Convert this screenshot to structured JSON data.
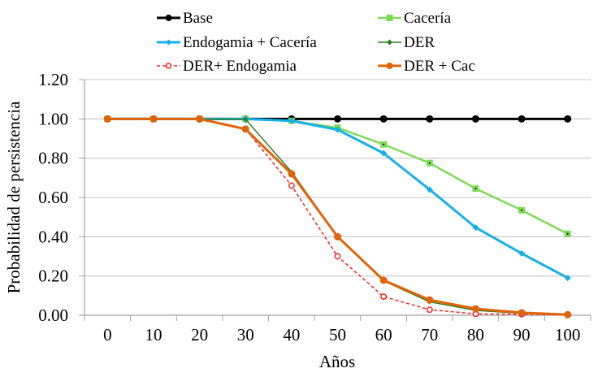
{
  "chart_data": {
    "type": "line",
    "title": "",
    "xlabel": "Años",
    "ylabel": "Probabilidad de persistencia",
    "categories": [
      "0",
      "10",
      "20",
      "30",
      "40",
      "50",
      "60",
      "70",
      "80",
      "90",
      "100"
    ],
    "ylim": [
      0,
      1.2
    ],
    "yticks": [
      "0.00",
      "0.20",
      "0.40",
      "0.60",
      "0.80",
      "1.00",
      "1.20"
    ],
    "grid": true,
    "legend_position": "top",
    "series": [
      {
        "name": "Base",
        "color": "#000000",
        "dashed": false,
        "marker": "circle",
        "values": [
          1.0,
          1.0,
          1.0,
          1.0,
          1.0,
          1.0,
          1.0,
          1.0,
          1.0,
          1.0,
          1.0
        ]
      },
      {
        "name": "Cacería",
        "color": "#7ED957",
        "dashed": false,
        "marker": "square",
        "values": [
          1.0,
          1.0,
          1.0,
          1.0,
          0.99,
          0.955,
          0.87,
          0.775,
          0.645,
          0.535,
          0.415
        ]
      },
      {
        "name": "Endogamia + Cacería",
        "color": "#17B0E8",
        "dashed": false,
        "marker": "diamond",
        "values": [
          1.0,
          1.0,
          1.0,
          1.0,
          0.99,
          0.945,
          0.825,
          0.64,
          0.447,
          0.315,
          0.19
        ]
      },
      {
        "name": "DER",
        "color": "#2E7D23",
        "dashed": false,
        "marker": "diamond",
        "values": [
          1.0,
          1.0,
          1.0,
          0.998,
          0.73,
          0.4,
          0.175,
          0.068,
          0.025,
          0.01,
          0.003
        ]
      },
      {
        "name": "DER+ Endogamia",
        "color": "#FF2020",
        "dashed": true,
        "marker": "circle-open",
        "values": [
          1.0,
          1.0,
          1.0,
          0.948,
          0.66,
          0.3,
          0.095,
          0.028,
          0.007,
          0.005,
          0.002
        ]
      },
      {
        "name": "DER + Cac",
        "color": "#E0640A",
        "dashed": false,
        "marker": "circle",
        "values": [
          1.0,
          1.0,
          1.0,
          0.948,
          0.72,
          0.4,
          0.178,
          0.078,
          0.033,
          0.013,
          0.003
        ]
      }
    ]
  }
}
